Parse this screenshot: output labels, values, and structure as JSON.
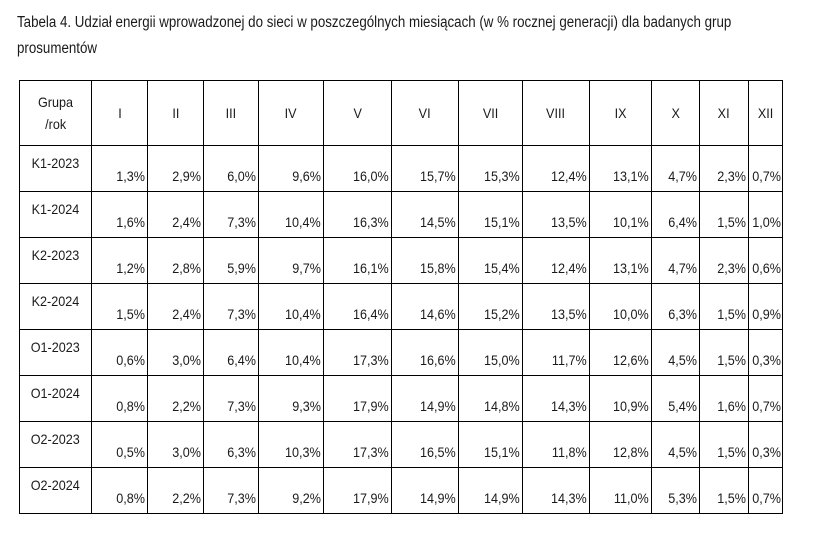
{
  "caption": "Tabela 4. Udział energii wprowadzonej do sieci w poszczególnych miesiącach (w % rocznej generacji) dla badanych grup prosumentów",
  "table": {
    "group_header_line1": "Grupa",
    "group_header_line2": "/rok",
    "months": [
      "I",
      "II",
      "III",
      "IV",
      "V",
      "VI",
      "VII",
      "VIII",
      "IX",
      "X",
      "XI",
      "XII"
    ],
    "rows": [
      {
        "label": "K1-2023",
        "values": [
          "1,3%",
          "2,9%",
          "6,0%",
          "9,6%",
          "16,0%",
          "15,7%",
          "15,3%",
          "12,4%",
          "13,1%",
          "4,7%",
          "2,3%",
          "0,7%"
        ]
      },
      {
        "label": "K1-2024",
        "values": [
          "1,6%",
          "2,4%",
          "7,3%",
          "10,4%",
          "16,3%",
          "14,5%",
          "15,1%",
          "13,5%",
          "10,1%",
          "6,4%",
          "1,5%",
          "1,0%"
        ]
      },
      {
        "label": "K2-2023",
        "values": [
          "1,2%",
          "2,8%",
          "5,9%",
          "9,7%",
          "16,1%",
          "15,8%",
          "15,4%",
          "12,4%",
          "13,1%",
          "4,7%",
          "2,3%",
          "0,6%"
        ]
      },
      {
        "label": "K2-2024",
        "values": [
          "1,5%",
          "2,4%",
          "7,3%",
          "10,4%",
          "16,4%",
          "14,6%",
          "15,2%",
          "13,5%",
          "10,0%",
          "6,3%",
          "1,5%",
          "0,9%"
        ]
      },
      {
        "label": "O1-2023",
        "values": [
          "0,6%",
          "3,0%",
          "6,4%",
          "10,4%",
          "17,3%",
          "16,6%",
          "15,0%",
          "11,7%",
          "12,6%",
          "4,5%",
          "1,5%",
          "0,3%"
        ]
      },
      {
        "label": "O1-2024",
        "values": [
          "0,8%",
          "2,2%",
          "7,3%",
          "9,3%",
          "17,9%",
          "14,9%",
          "14,8%",
          "14,3%",
          "10,9%",
          "5,4%",
          "1,6%",
          "0,7%"
        ]
      },
      {
        "label": "O2-2023",
        "values": [
          "0,5%",
          "3,0%",
          "6,3%",
          "10,3%",
          "17,3%",
          "16,5%",
          "15,1%",
          "11,8%",
          "12,8%",
          "4,5%",
          "1,5%",
          "0,3%"
        ]
      },
      {
        "label": "O2-2024",
        "values": [
          "0,8%",
          "2,2%",
          "7,3%",
          "9,2%",
          "17,9%",
          "14,9%",
          "14,9%",
          "14,3%",
          "11,0%",
          "5,3%",
          "1,5%",
          "0,7%"
        ]
      }
    ]
  }
}
